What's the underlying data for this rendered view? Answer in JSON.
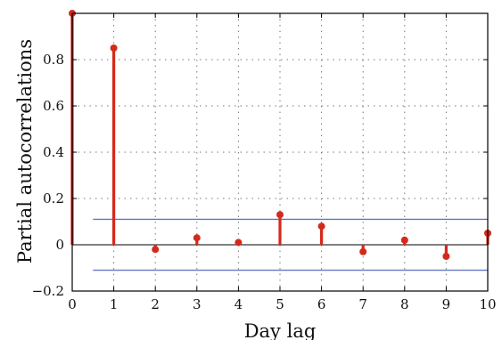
{
  "chart_data": {
    "type": "stem",
    "xlabel": "Day lag",
    "ylabel": "Partial autocorrelations",
    "xlim": [
      0,
      10
    ],
    "ylim": [
      -0.2,
      1.0
    ],
    "x_ticks": [
      0,
      1,
      2,
      3,
      4,
      5,
      6,
      7,
      8,
      9,
      10
    ],
    "y_ticks": [
      -0.2,
      0,
      0.2,
      0.4,
      0.6,
      0.8
    ],
    "y_tick_labels": [
      "−0.2",
      "0",
      "0.2",
      "0.4",
      "0.6",
      "0.8"
    ],
    "grid": true,
    "confidence_bounds": {
      "upper": 0.11,
      "lower": -0.11,
      "x_start": 0.5,
      "x_end": 10
    },
    "series": [
      {
        "x": [
          0,
          1,
          2,
          3,
          4,
          5,
          6,
          7,
          8,
          9,
          10
        ],
        "values": [
          1.0,
          0.85,
          -0.02,
          0.03,
          0.01,
          0.13,
          0.08,
          -0.03,
          0.02,
          -0.05,
          0.05
        ]
      }
    ],
    "colors": {
      "stem": "#d42a1c",
      "bounds": "#6474c8",
      "axis": "#000000",
      "grid": "#777777"
    }
  }
}
